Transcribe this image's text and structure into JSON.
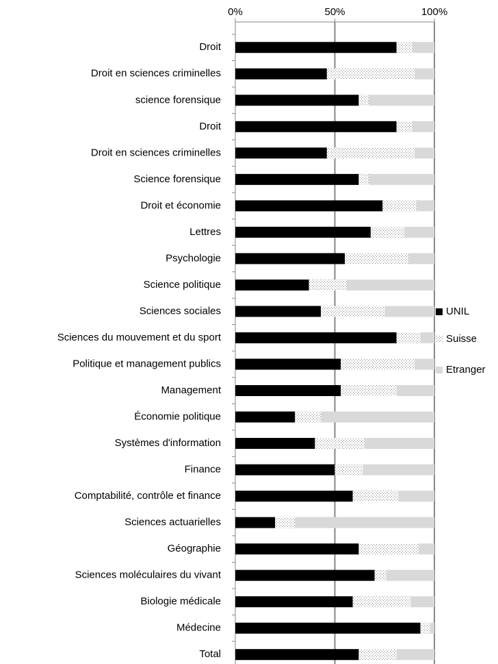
{
  "chart_data": {
    "type": "bar",
    "orientation": "horizontal",
    "stacked": true,
    "categories": [
      "Droit",
      "Droit en sciences criminelles",
      "science forensique",
      "Droit",
      "Droit en sciences criminelles",
      "Science forensique",
      "Droit et économie",
      "Lettres",
      "Psychologie",
      "Science politique",
      "Sciences sociales",
      "Sciences du mouvement et du sport",
      "Politique et management publics",
      "Management",
      "Économie politique",
      "Systèmes d'information",
      "Finance",
      "Comptabilité, contrôle et finance",
      "Sciences actuarielles",
      "Géographie",
      "Sciences moléculaires du vivant",
      "Biologie médicale",
      "Médecine",
      "Total"
    ],
    "series": [
      {
        "name": "UNIL",
        "color": "#000000",
        "values": [
          81,
          46,
          62,
          81,
          46,
          62,
          74,
          68,
          55,
          37,
          43,
          81,
          53,
          53,
          30,
          40,
          50,
          59,
          20,
          62,
          70,
          59,
          93,
          62
        ]
      },
      {
        "name": "Suisse",
        "color": "#7f7f7f",
        "pattern": "dots",
        "values": [
          8,
          44,
          5,
          8,
          44,
          5,
          17,
          17,
          32,
          19,
          32,
          12,
          37,
          28,
          13,
          25,
          14,
          23,
          10,
          30,
          6,
          29,
          5,
          19
        ]
      },
      {
        "name": "Etranger",
        "color": "#d9d9d9",
        "values": [
          11,
          10,
          33,
          11,
          10,
          33,
          9,
          15,
          13,
          44,
          25,
          7,
          10,
          19,
          57,
          35,
          36,
          18,
          70,
          8,
          24,
          12,
          2,
          19
        ]
      }
    ],
    "xlim": [
      0,
      100
    ],
    "xticks": [
      {
        "value": 0,
        "label": "0%"
      },
      {
        "value": 50,
        "label": "50%"
      },
      {
        "value": 100,
        "label": "100%"
      }
    ],
    "grid": true,
    "legend": "right"
  }
}
